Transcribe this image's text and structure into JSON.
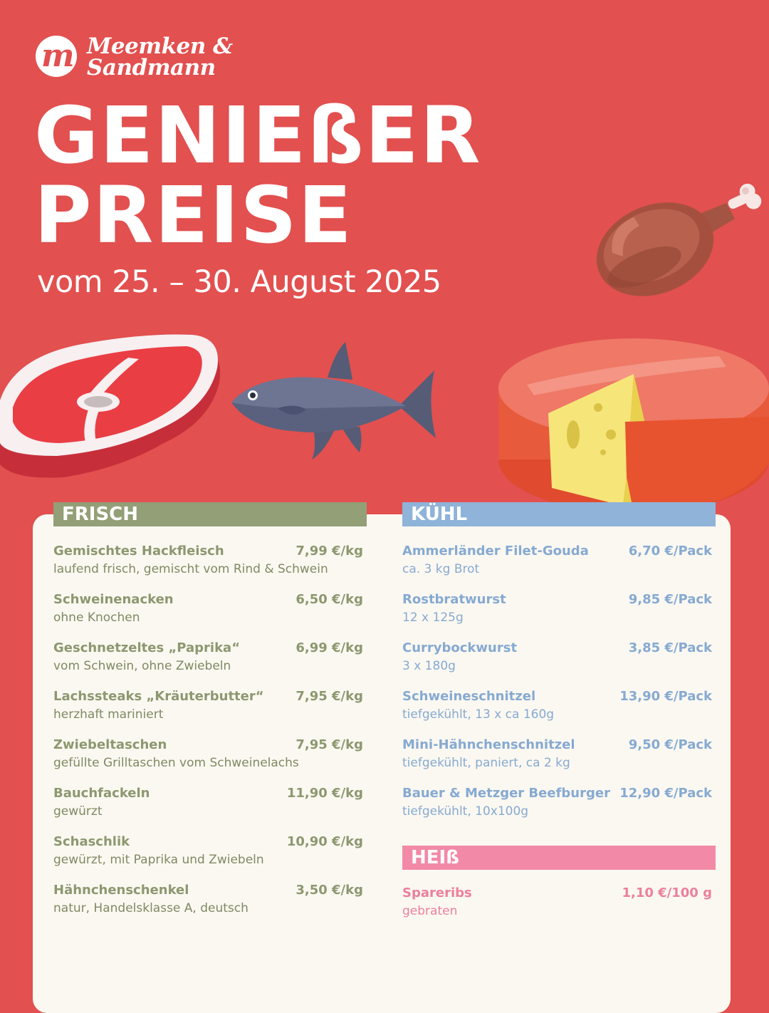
{
  "brand": {
    "line1": "Meemken &",
    "line2": "Sandmann",
    "monogram": "m"
  },
  "headline": {
    "line1": "GENIEßER",
    "line2": "PREISE"
  },
  "dateline": "vom 25. – 30. August 2025",
  "colors": {
    "background": "#e2504f",
    "frisch": "#939f76",
    "kuehl": "#8fb3d9",
    "heiss": "#f28aa7",
    "card": "#fbf8f1"
  },
  "illustrations": [
    "steak-icon",
    "fish-icon",
    "chicken-leg-icon",
    "cheese-wheel-icon"
  ],
  "frisch": {
    "title": "FRISCH",
    "items": [
      {
        "name": "Gemischtes Hackfleisch",
        "price": "7,99 €/kg",
        "desc": "laufend frisch, gemischt vom Rind & Schwein"
      },
      {
        "name": "Schweinenacken",
        "price": "6,50 €/kg",
        "desc": "ohne Knochen"
      },
      {
        "name": "Geschnetzeltes „Paprika“",
        "price": "6,99 €/kg",
        "desc": "vom Schwein, ohne Zwiebeln"
      },
      {
        "name": "Lachssteaks „Kräuterbutter“",
        "price": "7,95 €/kg",
        "desc": "herzhaft mariniert"
      },
      {
        "name": "Zwiebeltaschen",
        "price": "7,95 €/kg",
        "desc": "gefüllte Grilltaschen vom Schweinelachs"
      },
      {
        "name": "Bauchfackeln",
        "price": "11,90 €/kg",
        "desc": "gewürzt"
      },
      {
        "name": "Schaschlik",
        "price": "10,90 €/kg",
        "desc": "gewürzt, mit Paprika und Zwiebeln"
      },
      {
        "name": "Hähnchenschenkel",
        "price": "3,50 €/kg",
        "desc": "natur, Handelsklasse A, deutsch"
      }
    ]
  },
  "kuehl": {
    "title": "KÜHL",
    "items": [
      {
        "name": "Ammerländer Filet-Gouda",
        "price": "6,70 €/Pack",
        "desc": "ca. 3 kg Brot"
      },
      {
        "name": "Rostbratwurst",
        "price": "9,85 €/Pack",
        "desc": "12 x 125g"
      },
      {
        "name": "Currybockwurst",
        "price": "3,85 €/Pack",
        "desc": "3 x 180g"
      },
      {
        "name": "Schweineschnitzel",
        "price": "13,90 €/Pack",
        "desc": "tiefgekühlt, 13 x ca 160g"
      },
      {
        "name": "Mini-Hähnchenschnitzel",
        "price": "9,50 €/Pack",
        "desc": "tiefgekühlt, paniert, ca 2 kg"
      },
      {
        "name": "Bauer & Metzger Beefburger",
        "price": "12,90 €/Pack",
        "desc": "tiefgekühlt, 10x100g"
      }
    ]
  },
  "heiss": {
    "title": "HEIß",
    "items": [
      {
        "name": "Spareribs",
        "price": "1,10 €/100 g",
        "desc": "gebraten"
      }
    ]
  }
}
